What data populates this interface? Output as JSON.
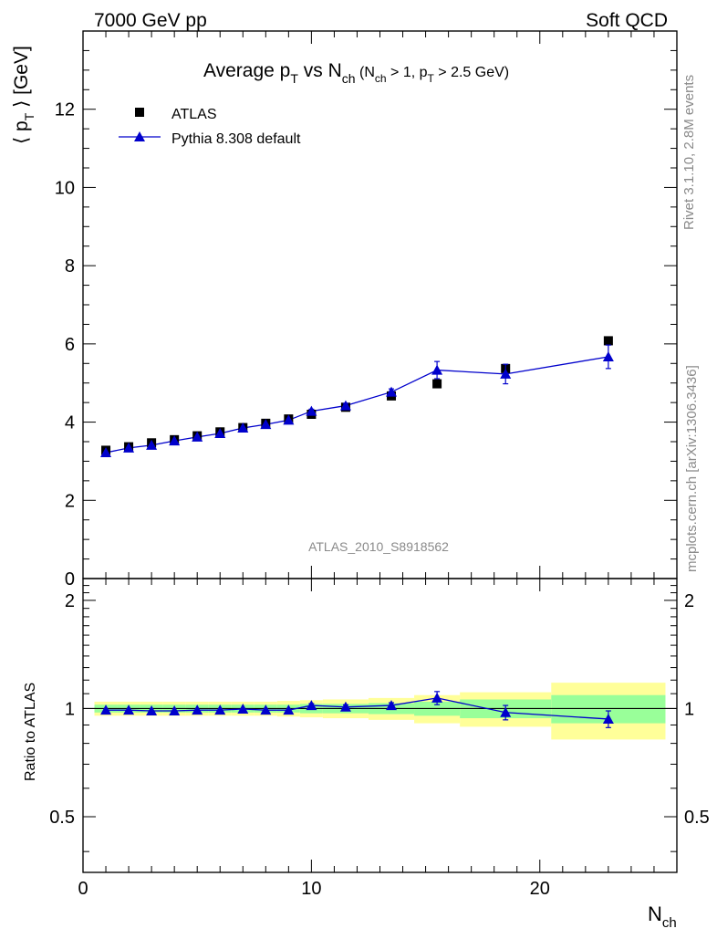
{
  "header": {
    "left": "7000 GeV pp",
    "right": "Soft QCD"
  },
  "side_labels": {
    "rivet": "Rivet 3.1.10,  2.8M events",
    "mcplots": "mcplots.cern.ch [arXiv:1306.3436]"
  },
  "watermark": "ATLAS_2010_S8918562",
  "chart_data": [
    {
      "type": "scatter",
      "title": "Average pT vs Nch (Nch > 1, pT > 2.5 GeV)",
      "xlabel": "Nch",
      "ylabel": "⟨ pT ⟩  [GeV]",
      "xlim": [
        0,
        26
      ],
      "ylim": [
        0,
        14
      ],
      "y_ticks": [
        0,
        2,
        4,
        6,
        8,
        10,
        12
      ],
      "legend_position": "top-left",
      "colors": {
        "atlas": "#000000",
        "pythia": "#0000cc"
      },
      "x": [
        1,
        2,
        3,
        4,
        5,
        6,
        7,
        8,
        9,
        10,
        11.5,
        13.5,
        15.5,
        18.5,
        23
      ],
      "series": [
        {
          "name": "ATLAS",
          "marker": "square",
          "values": [
            3.28,
            3.37,
            3.47,
            3.55,
            3.65,
            3.75,
            3.86,
            3.97,
            4.08,
            4.2,
            4.38,
            4.67,
            4.98,
            5.37,
            6.08
          ]
        },
        {
          "name": "Pythia 8.308 default",
          "marker": "triangle",
          "line": true,
          "values": [
            3.22,
            3.34,
            3.41,
            3.52,
            3.62,
            3.71,
            3.85,
            3.94,
            4.05,
            4.28,
            4.42,
            4.77,
            5.33,
            5.23,
            5.67
          ],
          "errors": [
            0.02,
            0.02,
            0.02,
            0.02,
            0.02,
            0.02,
            0.02,
            0.02,
            0.02,
            0.05,
            0.06,
            0.08,
            0.22,
            0.25,
            0.3
          ]
        }
      ]
    },
    {
      "type": "scatter",
      "xlabel": "Nch",
      "ylabel": "Ratio to ATLAS",
      "xlim": [
        0,
        26
      ],
      "ylim": [
        0.35,
        2.3
      ],
      "y_ticks": [
        0.5,
        1,
        2
      ],
      "x_ticks": [
        0,
        10,
        20
      ],
      "reference_line": 1,
      "colors": {
        "band_inner": "#99ff99",
        "band_outer": "#ffff99",
        "pythia": "#0000cc",
        "reference": "#000000"
      },
      "bands": [
        {
          "x_low": 0.5,
          "x_high": 1.5,
          "inner": 0.025,
          "outer": 0.045
        },
        {
          "x_low": 1.5,
          "x_high": 2.5,
          "inner": 0.025,
          "outer": 0.045
        },
        {
          "x_low": 2.5,
          "x_high": 3.5,
          "inner": 0.025,
          "outer": 0.045
        },
        {
          "x_low": 3.5,
          "x_high": 4.5,
          "inner": 0.025,
          "outer": 0.045
        },
        {
          "x_low": 4.5,
          "x_high": 5.5,
          "inner": 0.025,
          "outer": 0.045
        },
        {
          "x_low": 5.5,
          "x_high": 6.5,
          "inner": 0.025,
          "outer": 0.045
        },
        {
          "x_low": 6.5,
          "x_high": 7.5,
          "inner": 0.025,
          "outer": 0.045
        },
        {
          "x_low": 7.5,
          "x_high": 8.5,
          "inner": 0.025,
          "outer": 0.045
        },
        {
          "x_low": 8.5,
          "x_high": 9.5,
          "inner": 0.025,
          "outer": 0.05
        },
        {
          "x_low": 9.5,
          "x_high": 10.5,
          "inner": 0.03,
          "outer": 0.055
        },
        {
          "x_low": 10.5,
          "x_high": 12.5,
          "inner": 0.03,
          "outer": 0.06
        },
        {
          "x_low": 12.5,
          "x_high": 14.5,
          "inner": 0.035,
          "outer": 0.07
        },
        {
          "x_low": 14.5,
          "x_high": 16.5,
          "inner": 0.045,
          "outer": 0.09
        },
        {
          "x_low": 16.5,
          "x_high": 20.5,
          "inner": 0.06,
          "outer": 0.11
        },
        {
          "x_low": 20.5,
          "x_high": 25.5,
          "inner": 0.09,
          "outer": 0.18
        }
      ],
      "x": [
        1,
        2,
        3,
        4,
        5,
        6,
        7,
        8,
        9,
        10,
        11.5,
        13.5,
        15.5,
        18.5,
        23
      ],
      "series": [
        {
          "name": "Pythia 8.308 default",
          "marker": "triangle",
          "line": true,
          "values": [
            0.99,
            0.99,
            0.985,
            0.985,
            0.99,
            0.99,
            0.997,
            0.99,
            0.99,
            1.02,
            1.01,
            1.02,
            1.07,
            0.975,
            0.935
          ],
          "errors": [
            0.006,
            0.006,
            0.006,
            0.006,
            0.006,
            0.006,
            0.006,
            0.006,
            0.006,
            0.012,
            0.014,
            0.018,
            0.045,
            0.045,
            0.05
          ]
        }
      ]
    }
  ]
}
